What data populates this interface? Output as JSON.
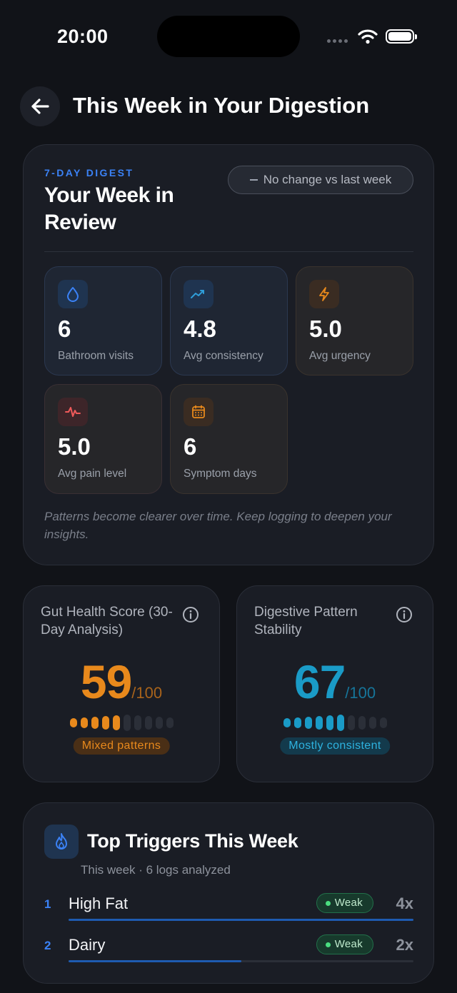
{
  "status_bar": {
    "time": "20:00"
  },
  "header": {
    "title": "This Week in Your Digestion"
  },
  "digest": {
    "eyebrow": "7-DAY DIGEST",
    "title": "Your Week in Review",
    "change": "No change vs last week",
    "stats": [
      {
        "value": "6",
        "label": "Bathroom visits",
        "icon": "droplet-icon"
      },
      {
        "value": "4.8",
        "label": "Avg consistency",
        "icon": "trend-icon"
      },
      {
        "value": "5.0",
        "label": "Avg urgency",
        "icon": "lightning-icon"
      },
      {
        "value": "5.0",
        "label": "Avg pain level",
        "icon": "pulse-icon"
      },
      {
        "value": "6",
        "label": "Symptom days",
        "icon": "calendar-icon"
      }
    ],
    "note": "Patterns become clearer over time. Keep logging to deepen your insights."
  },
  "gut_score": {
    "title": "Gut Health Score (30-Day Analysis)",
    "value": "59",
    "max": "/100",
    "level": 0.59,
    "badge": "Mixed patterns",
    "color": "#e8891c"
  },
  "stability": {
    "title": "Digestive Pattern Stability",
    "value": "67",
    "max": "/100",
    "level": 0.67,
    "badge": "Mostly consistent",
    "color": "#1a9bc7"
  },
  "triggers": {
    "title": "Top Triggers This Week",
    "subtitle": "This week · 6 logs analyzed",
    "items": [
      {
        "rank": "1",
        "name": "High Fat",
        "strength": "Weak",
        "count": "4x",
        "level": 1.0
      },
      {
        "rank": "2",
        "name": "Dairy",
        "strength": "Weak",
        "count": "2x",
        "level": 0.5
      }
    ]
  }
}
